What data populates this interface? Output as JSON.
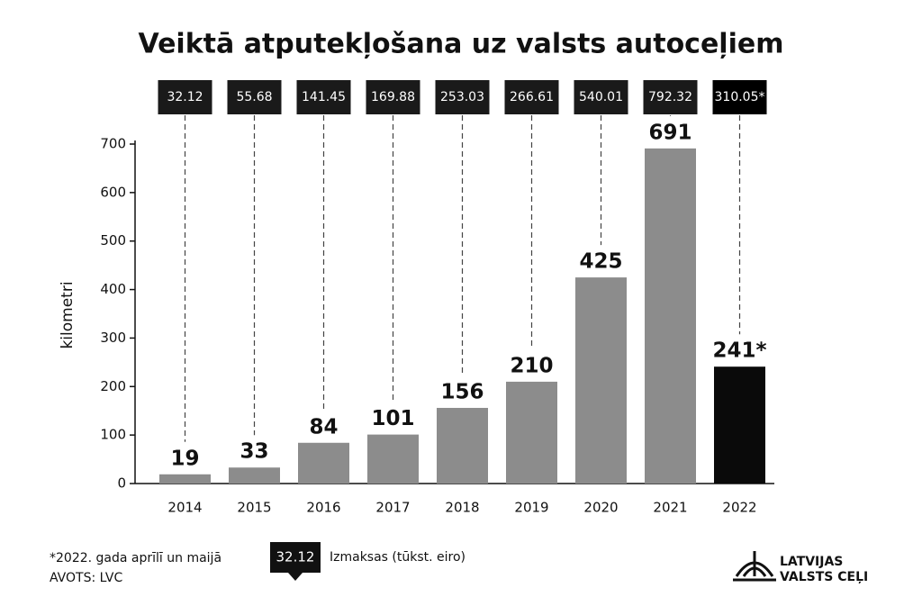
{
  "chart_data": {
    "type": "bar",
    "title": "Veiktā atputekļošana uz valsts autoceļiem",
    "y_label": "kilometri",
    "categories": [
      "2014",
      "2015",
      "2016",
      "2017",
      "2018",
      "2019",
      "2020",
      "2021",
      "2022"
    ],
    "values": [
      19,
      33,
      84,
      101,
      156,
      210,
      425,
      691,
      241
    ],
    "value_labels": [
      "19",
      "33",
      "84",
      "101",
      "156",
      "210",
      "425",
      "691",
      "241*"
    ],
    "colors": [
      "#8c8c8c",
      "#8c8c8c",
      "#8c8c8c",
      "#8c8c8c",
      "#8c8c8c",
      "#8c8c8c",
      "#8c8c8c",
      "#8c8c8c",
      "#0a0a0a"
    ],
    "costs": [
      32.12,
      55.68,
      141.45,
      169.88,
      253.03,
      266.61,
      540.01,
      792.32,
      310.05
    ],
    "cost_labels": [
      "32.12",
      "55.68",
      "141.45",
      "169.88",
      "253.03",
      "266.61",
      "540.01",
      "792.32",
      "310.05*"
    ],
    "cost_legend": "Izmaksas (tūkst. eiro)",
    "footnote": "*2022. gada aprīlī un maijā",
    "source": "AVOTS: LVC",
    "logo": [
      "LATVIJAS",
      "VALSTS CEĻI"
    ],
    "ylim": [
      0,
      700
    ],
    "yticks": [
      0,
      100,
      200,
      300,
      400,
      500,
      600,
      700
    ]
  }
}
